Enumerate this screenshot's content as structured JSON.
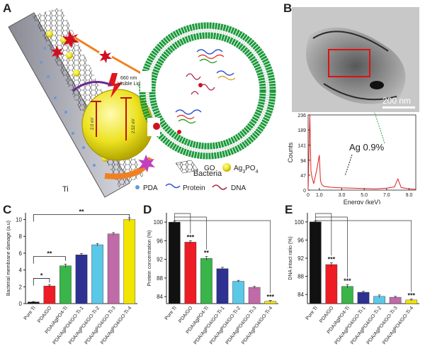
{
  "panels": {
    "A": {
      "letter": "A",
      "labels": {
        "visible_light": "660 nm\nVisible Light",
        "ev1": "2.0 eV",
        "ev2": "2.52 eV",
        "bacteria": "Bacteria",
        "ti": "Ti",
        "legend_go": "GO",
        "legend_ag": "Ag3PO4",
        "legend_pda": "PDA",
        "legend_protein": "Protein",
        "legend_dna": "DNA"
      },
      "colors": {
        "sphere": "#e8e020",
        "membrane": "#1a9a3a",
        "go": "#444444"
      }
    },
    "B": {
      "letter": "B",
      "scalebar": "200 nm",
      "annotation": "Ag 0.9%",
      "xlabel": "Energy  (keV)",
      "ylabel": "Counts",
      "yticks": [
        "0",
        "47",
        "94",
        "141",
        "189",
        "236"
      ],
      "xticks": [
        "0",
        "1.0",
        "3.0",
        "5.0",
        "7.0",
        "9.0"
      ]
    },
    "C": {
      "letter": "C"
    },
    "D": {
      "letter": "D"
    },
    "E": {
      "letter": "E"
    }
  },
  "chart_data": [
    {
      "type": "bar",
      "panel": "C",
      "ylabel": "Bacterial membrane damage (a.u)",
      "categories": [
        "Pure Ti",
        "PDA/GO",
        "PDA/AgPO4-Ti",
        "PDA/AgPO4/GO-Ti-1",
        "PDA/AgPO4/GO-Ti-2",
        "PDA/AgPO4/GO-Ti-3",
        "PDA/AgPO4/GO-Ti-4"
      ],
      "values": [
        0.2,
        2.1,
        4.5,
        5.8,
        7.0,
        8.3,
        10.0
      ],
      "errors": [
        0.05,
        0.15,
        0.2,
        0.15,
        0.15,
        0.15,
        0.2
      ],
      "colors": [
        "#111111",
        "#ee1c24",
        "#3ab54a",
        "#2e3192",
        "#5bc8e8",
        "#c06aa8",
        "#f2e500"
      ],
      "yticks": [
        "0",
        "2",
        "4",
        "6",
        "8",
        "10"
      ],
      "ylim": [
        0,
        10.8
      ],
      "significance": [
        "*",
        "**",
        "**"
      ]
    },
    {
      "type": "bar",
      "panel": "D",
      "ylabel": "Protein concentration (%)",
      "categories": [
        "Pure Ti",
        "PDA/GO",
        "PDA/AgPO4-Ti",
        "PDA/AgPO4/GO-Ti-1",
        "PDA/AgPO4/GO-Ti-2",
        "PDA/AgPO4/GO-Ti-3",
        "PDA/AgPO4/GO-Ti-4"
      ],
      "values": [
        100,
        95.7,
        92.2,
        90.0,
        87.3,
        86.0,
        83.0
      ],
      "errors": [
        0.2,
        0.3,
        0.4,
        0.3,
        0.2,
        0.2,
        0.2
      ],
      "colors": [
        "#111111",
        "#ee1c24",
        "#3ab54a",
        "#2e3192",
        "#5bc8e8",
        "#c06aa8",
        "#f2e500"
      ],
      "yticks": [
        "84",
        "88",
        "92",
        "96",
        "100"
      ],
      "ylim": [
        82.5,
        102
      ],
      "bar_labels": [
        "",
        "***",
        "**",
        "",
        "",
        "",
        "***"
      ]
    },
    {
      "type": "bar",
      "panel": "E",
      "ylabel": "DNA intact ratio (%)",
      "categories": [
        "Pure Ti",
        "PDA/GO",
        "PDA/AgPO4-Ti",
        "PDA/AgPO4/GO-Ti-1",
        "PDA/AgPO4/GO-Ti-2",
        "PDA/AgPO4/GO-Ti-3",
        "PDA/AgPO4/GO-Ti-4"
      ],
      "values": [
        100,
        90.6,
        85.8,
        84.5,
        83.6,
        83.4,
        82.8
      ],
      "errors": [
        0.2,
        0.4,
        0.4,
        0.2,
        0.3,
        0.2,
        0.2
      ],
      "colors": [
        "#111111",
        "#ee1c24",
        "#3ab54a",
        "#2e3192",
        "#5bc8e8",
        "#c06aa8",
        "#f2e500"
      ],
      "yticks": [
        "84",
        "88",
        "92",
        "96",
        "100"
      ],
      "ylim": [
        82,
        102
      ],
      "bar_labels": [
        "",
        "***",
        "***",
        "",
        "",
        "",
        "***"
      ]
    },
    {
      "type": "line",
      "panel": "B",
      "xlabel": "Energy  (keV)",
      "ylabel": "Counts",
      "xlim": [
        0,
        9.6
      ],
      "ylim": [
        0,
        236
      ],
      "x": [
        0,
        0.15,
        0.25,
        0.35,
        0.5,
        0.8,
        1.0,
        1.1,
        1.2,
        1.4,
        2.0,
        3.0,
        4.0,
        5.0,
        6.0,
        7.0,
        7.7,
        8.0,
        8.3,
        9.0,
        9.6
      ],
      "y": [
        0,
        236,
        60,
        40,
        20,
        70,
        110,
        30,
        18,
        12,
        9,
        7,
        6,
        5,
        4,
        6,
        10,
        35,
        8,
        4,
        3
      ]
    }
  ]
}
